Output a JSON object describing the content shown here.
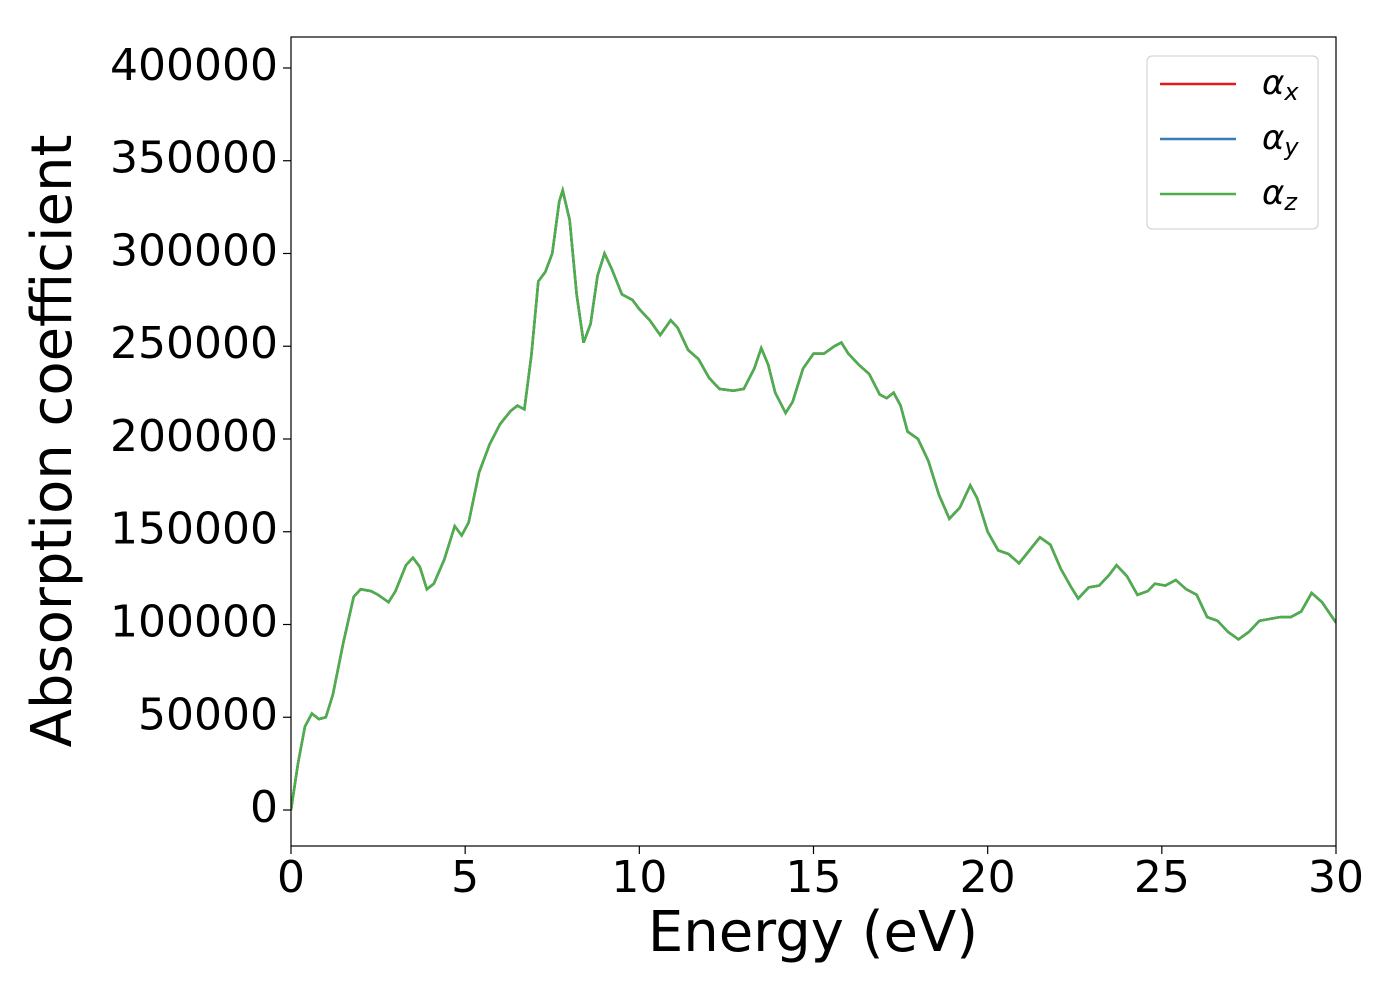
{
  "chart_data": {
    "type": "line",
    "xlabel": "Energy (eV)",
    "ylabel": "Absorption coefficient",
    "x": [
      0,
      0.2,
      0.4,
      0.6,
      0.8,
      1.0,
      1.2,
      1.5,
      1.8,
      2.0,
      2.3,
      2.5,
      2.8,
      3.0,
      3.3,
      3.5,
      3.7,
      3.9,
      4.1,
      4.4,
      4.7,
      4.9,
      5.1,
      5.4,
      5.7,
      6.0,
      6.3,
      6.5,
      6.7,
      6.9,
      7.1,
      7.3,
      7.5,
      7.7,
      7.8,
      8.0,
      8.2,
      8.4,
      8.6,
      8.8,
      9.0,
      9.2,
      9.5,
      9.8,
      10.0,
      10.3,
      10.6,
      10.9,
      11.1,
      11.4,
      11.7,
      12.0,
      12.3,
      12.7,
      13.0,
      13.3,
      13.5,
      13.7,
      13.9,
      14.2,
      14.4,
      14.7,
      15.0,
      15.3,
      15.6,
      15.8,
      16.0,
      16.3,
      16.6,
      16.9,
      17.1,
      17.3,
      17.5,
      17.7,
      18.0,
      18.3,
      18.6,
      18.9,
      19.2,
      19.5,
      19.7,
      20.0,
      20.3,
      20.6,
      20.9,
      21.2,
      21.5,
      21.8,
      22.1,
      22.4,
      22.6,
      22.9,
      23.2,
      23.5,
      23.7,
      24.0,
      24.3,
      24.6,
      24.8,
      25.1,
      25.4,
      25.7,
      26.0,
      26.3,
      26.6,
      26.9,
      27.2,
      27.5,
      27.8,
      28.1,
      28.4,
      28.7,
      29.0,
      29.3,
      29.6,
      30.0
    ],
    "series": [
      {
        "name": "αx",
        "color": "#e41a1c",
        "values": [
          0,
          25000,
          45000,
          52000,
          49000,
          50000,
          62000,
          90000,
          115000,
          119000,
          118000,
          116000,
          112000,
          118000,
          132000,
          136000,
          131000,
          119000,
          122000,
          135000,
          153000,
          148000,
          155000,
          182000,
          197000,
          208000,
          215000,
          218000,
          216000,
          245000,
          285000,
          290000,
          300000,
          328000,
          334000,
          318000,
          278000,
          252000,
          262000,
          288000,
          300000,
          292000,
          278000,
          275000,
          270000,
          264000,
          256000,
          264000,
          260000,
          248000,
          243000,
          233000,
          227000,
          226000,
          227000,
          238000,
          249000,
          240000,
          225000,
          214000,
          220000,
          238000,
          246000,
          246000,
          250000,
          252000,
          246000,
          240000,
          235000,
          224000,
          222000,
          225000,
          218000,
          204000,
          200000,
          188000,
          170000,
          157000,
          163000,
          175000,
          168000,
          150000,
          140000,
          138000,
          133000,
          140000,
          147000,
          143000,
          130000,
          120000,
          114000,
          120000,
          121000,
          127000,
          132000,
          126000,
          116000,
          118000,
          122000,
          121000,
          124000,
          119000,
          116000,
          104000,
          102000,
          96000,
          92000,
          96000,
          102000,
          103000,
          104000,
          104000,
          107000,
          117000,
          112000,
          101000
        ]
      },
      {
        "name": "αy",
        "color": "#377eb8",
        "values": [
          0,
          25000,
          45000,
          52000,
          49000,
          50000,
          62000,
          90000,
          115000,
          119000,
          118000,
          116000,
          112000,
          118000,
          132000,
          136000,
          131000,
          119000,
          122000,
          135000,
          153000,
          148000,
          155000,
          182000,
          197000,
          208000,
          215000,
          218000,
          216000,
          245000,
          285000,
          290000,
          300000,
          328000,
          334000,
          318000,
          278000,
          252000,
          262000,
          288000,
          300000,
          292000,
          278000,
          275000,
          270000,
          264000,
          256000,
          264000,
          260000,
          248000,
          243000,
          233000,
          227000,
          226000,
          227000,
          238000,
          249000,
          240000,
          225000,
          214000,
          220000,
          238000,
          246000,
          246000,
          250000,
          252000,
          246000,
          240000,
          235000,
          224000,
          222000,
          225000,
          218000,
          204000,
          200000,
          188000,
          170000,
          157000,
          163000,
          175000,
          168000,
          150000,
          140000,
          138000,
          133000,
          140000,
          147000,
          143000,
          130000,
          120000,
          114000,
          120000,
          121000,
          127000,
          132000,
          126000,
          116000,
          118000,
          122000,
          121000,
          124000,
          119000,
          116000,
          104000,
          102000,
          96000,
          92000,
          96000,
          102000,
          103000,
          104000,
          104000,
          107000,
          117000,
          112000,
          101000
        ]
      },
      {
        "name": "αz",
        "color": "#4daf4a",
        "values": [
          0,
          25000,
          45000,
          52000,
          49000,
          50000,
          62000,
          90000,
          115000,
          119000,
          118000,
          116000,
          112000,
          118000,
          132000,
          136000,
          131000,
          119000,
          122000,
          135000,
          153000,
          148000,
          155000,
          182000,
          197000,
          208000,
          215000,
          218000,
          216000,
          245000,
          285000,
          290000,
          300000,
          328000,
          334000,
          318000,
          278000,
          252000,
          262000,
          288000,
          300000,
          292000,
          278000,
          275000,
          270000,
          264000,
          256000,
          264000,
          260000,
          248000,
          243000,
          233000,
          227000,
          226000,
          227000,
          238000,
          249000,
          240000,
          225000,
          214000,
          220000,
          238000,
          246000,
          246000,
          250000,
          252000,
          246000,
          240000,
          235000,
          224000,
          222000,
          225000,
          218000,
          204000,
          200000,
          188000,
          170000,
          157000,
          163000,
          175000,
          168000,
          150000,
          140000,
          138000,
          133000,
          140000,
          147000,
          143000,
          130000,
          120000,
          114000,
          120000,
          121000,
          127000,
          132000,
          126000,
          116000,
          118000,
          122000,
          121000,
          124000,
          119000,
          116000,
          104000,
          102000,
          96000,
          92000,
          96000,
          102000,
          103000,
          104000,
          104000,
          107000,
          117000,
          112000,
          101000
        ]
      }
    ],
    "xlim": [
      0,
      30
    ],
    "xticks": [
      0,
      5,
      10,
      15,
      20,
      25,
      30
    ],
    "ylim": [
      -19400,
      416700
    ],
    "yticks": [
      0,
      50000,
      100000,
      150000,
      200000,
      250000,
      300000,
      350000,
      400000
    ],
    "legend": "upper right"
  }
}
